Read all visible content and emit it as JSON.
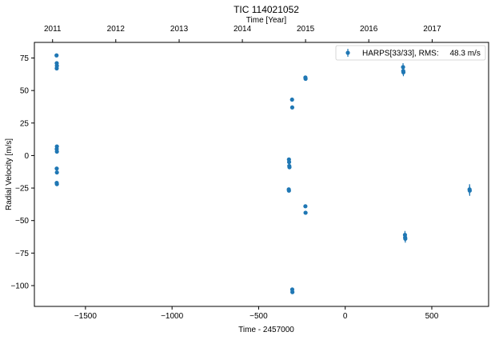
{
  "chart_data": {
    "type": "scatter",
    "title": "TIC 114021052",
    "xlabel": "Time - 2457000",
    "ylabel": "Radial Velocity [m/s]",
    "top_xlabel": "Time [Year]",
    "xlim": [
      -1795,
      828
    ],
    "ylim": [
      -116,
      87
    ],
    "xticks": [
      -1500,
      -1000,
      -500,
      0,
      500
    ],
    "yticks": [
      -100,
      -75,
      -50,
      -25,
      0,
      25,
      50,
      75
    ],
    "top_ticks": [
      {
        "label": "2011",
        "x": -1690
      },
      {
        "label": "2012",
        "x": -1325
      },
      {
        "label": "2013",
        "x": -959
      },
      {
        "label": "2014",
        "x": -594
      },
      {
        "label": "2015",
        "x": -229
      },
      {
        "label": "2016",
        "x": 136
      },
      {
        "label": "2017",
        "x": 502
      }
    ],
    "grid": false,
    "legend_position": "top-right",
    "series": [
      {
        "name": "HARPS[33/33], RMS:     48.3 m/s",
        "color": "#1f77b4",
        "points": [
          {
            "x": -1667,
            "y": 77,
            "err": 1.2
          },
          {
            "x": -1666,
            "y": 71,
            "err": 1.2
          },
          {
            "x": -1665,
            "y": 69,
            "err": 1.2
          },
          {
            "x": -1666,
            "y": 67,
            "err": 1.2
          },
          {
            "x": -1665,
            "y": 7,
            "err": 1.2
          },
          {
            "x": -1666,
            "y": 5,
            "err": 1.2
          },
          {
            "x": -1665,
            "y": 3,
            "err": 1.2
          },
          {
            "x": -1666,
            "y": -10,
            "err": 1.2
          },
          {
            "x": -1665,
            "y": -13,
            "err": 1.2
          },
          {
            "x": -1666,
            "y": -21,
            "err": 1.2
          },
          {
            "x": -1665,
            "y": -22,
            "err": 1.2
          },
          {
            "x": -325,
            "y": -3,
            "err": 1.2
          },
          {
            "x": -324,
            "y": -5,
            "err": 1.2
          },
          {
            "x": -323,
            "y": -8,
            "err": 1.2
          },
          {
            "x": -322,
            "y": -9,
            "err": 1.2
          },
          {
            "x": -326,
            "y": -26,
            "err": 1.2
          },
          {
            "x": -325,
            "y": -27,
            "err": 1.2
          },
          {
            "x": -307,
            "y": 43,
            "err": 1.2
          },
          {
            "x": -306,
            "y": 37,
            "err": 1.2
          },
          {
            "x": -306,
            "y": -103,
            "err": 1.2
          },
          {
            "x": -305,
            "y": -105,
            "err": 1.2
          },
          {
            "x": -230,
            "y": 60,
            "err": 1.2
          },
          {
            "x": -229,
            "y": 59,
            "err": 1.2
          },
          {
            "x": -230,
            "y": -39,
            "err": 1.2
          },
          {
            "x": -229,
            "y": -44,
            "err": 1.2
          },
          {
            "x": 334,
            "y": 68,
            "err": 3
          },
          {
            "x": 335,
            "y": 65,
            "err": 3
          },
          {
            "x": 336,
            "y": 64,
            "err": 3
          },
          {
            "x": 345,
            "y": -61,
            "err": 3
          },
          {
            "x": 346,
            "y": -63,
            "err": 3
          },
          {
            "x": 347,
            "y": -64,
            "err": 3
          },
          {
            "x": 718,
            "y": -26,
            "err": 4
          },
          {
            "x": 719,
            "y": -27,
            "err": 4
          }
        ]
      }
    ]
  }
}
